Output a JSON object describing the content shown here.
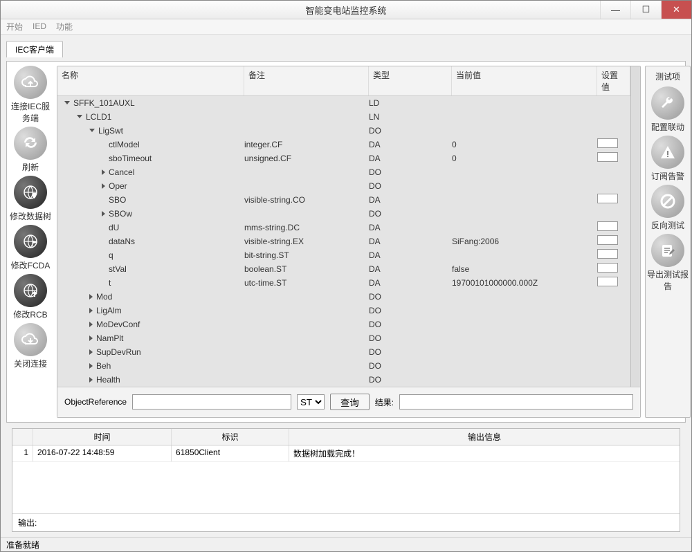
{
  "window": {
    "title": "智能变电站监控系统"
  },
  "menu": {
    "start": "开始",
    "ied": "IED",
    "func": "功能"
  },
  "tab": {
    "label": "IEC客户端"
  },
  "leftButtons": [
    {
      "id": "connect",
      "label": "连接IEC服务端",
      "style": "grey",
      "icon": "cloud-up"
    },
    {
      "id": "refresh",
      "label": "刷新",
      "style": "grey",
      "icon": "sync"
    },
    {
      "id": "modtree",
      "label": "修改数据树",
      "style": "dark",
      "icon": "globe-shield"
    },
    {
      "id": "modfcda",
      "label": "修改FCDA",
      "style": "dark",
      "icon": "globe-flag"
    },
    {
      "id": "modrcb",
      "label": "修改RCB",
      "style": "dark",
      "icon": "globe-up"
    },
    {
      "id": "close",
      "label": "关闭连接",
      "style": "grey",
      "icon": "cloud-down"
    }
  ],
  "rightPanel": {
    "header": "测试项",
    "buttons": [
      {
        "id": "cfg",
        "label": "配置联动",
        "icon": "wrench"
      },
      {
        "id": "sub",
        "label": "订阅告警",
        "icon": "alert"
      },
      {
        "id": "rev",
        "label": "反向测试",
        "icon": "forbid"
      },
      {
        "id": "exp",
        "label": "导出测试报告",
        "icon": "edit"
      }
    ]
  },
  "gridHeaders": {
    "name": "名称",
    "remark": "备注",
    "type": "类型",
    "current": "当前值",
    "setv": "设置值"
  },
  "rows": [
    {
      "indent": 0,
      "exp": "open",
      "name": "SFFK_101AUXL",
      "rem": "",
      "type": "LD",
      "cur": "",
      "set": false
    },
    {
      "indent": 1,
      "exp": "open",
      "name": "LCLD1",
      "rem": "",
      "type": "LN",
      "cur": "",
      "set": false
    },
    {
      "indent": 2,
      "exp": "open",
      "name": "LigSwt",
      "rem": "",
      "type": "DO",
      "cur": "",
      "set": false
    },
    {
      "indent": 3,
      "exp": "none",
      "name": "ctlModel",
      "rem": "integer.CF",
      "type": "DA",
      "cur": "0",
      "set": true
    },
    {
      "indent": 3,
      "exp": "none",
      "name": "sboTimeout",
      "rem": "unsigned.CF",
      "type": "DA",
      "cur": "0",
      "set": true
    },
    {
      "indent": 3,
      "exp": "closed",
      "name": "Cancel",
      "rem": "",
      "type": "DO",
      "cur": "",
      "set": false
    },
    {
      "indent": 3,
      "exp": "closed",
      "name": "Oper",
      "rem": "",
      "type": "DO",
      "cur": "",
      "set": false
    },
    {
      "indent": 3,
      "exp": "none",
      "name": "SBO",
      "rem": "visible-string.CO",
      "type": "DA",
      "cur": "",
      "set": true
    },
    {
      "indent": 3,
      "exp": "closed",
      "name": "SBOw",
      "rem": "",
      "type": "DO",
      "cur": "",
      "set": false
    },
    {
      "indent": 3,
      "exp": "none",
      "name": "dU",
      "rem": "mms-string.DC",
      "type": "DA",
      "cur": "",
      "set": true
    },
    {
      "indent": 3,
      "exp": "none",
      "name": "dataNs",
      "rem": "visible-string.EX",
      "type": "DA",
      "cur": "SiFang:2006",
      "set": true
    },
    {
      "indent": 3,
      "exp": "none",
      "name": "q",
      "rem": "bit-string.ST",
      "type": "DA",
      "cur": "",
      "set": true
    },
    {
      "indent": 3,
      "exp": "none",
      "name": "stVal",
      "rem": "boolean.ST",
      "type": "DA",
      "cur": "false",
      "set": true
    },
    {
      "indent": 3,
      "exp": "none",
      "name": "t",
      "rem": "utc-time.ST",
      "type": "DA",
      "cur": "19700101000000.000Z",
      "set": true
    },
    {
      "indent": 2,
      "exp": "closed",
      "name": "Mod",
      "rem": "",
      "type": "DO",
      "cur": "",
      "set": false
    },
    {
      "indent": 2,
      "exp": "closed",
      "name": "LigAlm",
      "rem": "",
      "type": "DO",
      "cur": "",
      "set": false
    },
    {
      "indent": 2,
      "exp": "closed",
      "name": "MoDevConf",
      "rem": "",
      "type": "DO",
      "cur": "",
      "set": false
    },
    {
      "indent": 2,
      "exp": "closed",
      "name": "NamPlt",
      "rem": "",
      "type": "DO",
      "cur": "",
      "set": false
    },
    {
      "indent": 2,
      "exp": "closed",
      "name": "SupDevRun",
      "rem": "",
      "type": "DO",
      "cur": "",
      "set": false
    },
    {
      "indent": 2,
      "exp": "closed",
      "name": "Beh",
      "rem": "",
      "type": "DO",
      "cur": "",
      "set": false
    },
    {
      "indent": 2,
      "exp": "closed",
      "name": "Health",
      "rem": "",
      "type": "DO",
      "cur": "",
      "set": false
    }
  ],
  "query": {
    "label": "ObjectReference",
    "fc": "ST",
    "btn": "查询",
    "resLabel": "结果:",
    "value": ""
  },
  "logHeaders": {
    "time": "时间",
    "tag": "标识",
    "msg": "输出信息"
  },
  "logRows": [
    {
      "idx": "1",
      "time": "2016-07-22 14:48:59",
      "tag": "61850Client",
      "msg": "数据树加载完成！"
    }
  ],
  "outputLabel": "输出:",
  "status": "准备就绪",
  "colors": {
    "bg": "#f0f0f0",
    "panel": "#e4e4e4",
    "accent": "#c75050"
  }
}
